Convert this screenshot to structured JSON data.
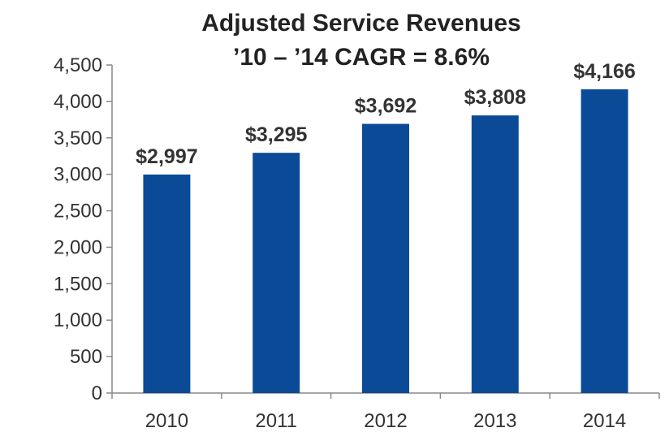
{
  "chart_data": {
    "type": "bar",
    "title": "Adjusted Service Revenues",
    "subtitle": "’10 – ’14 CAGR = 8.6%",
    "categories": [
      "2010",
      "2011",
      "2012",
      "2013",
      "2014"
    ],
    "values": [
      2997,
      3295,
      3692,
      3808,
      4166
    ],
    "data_labels": [
      "$2,997",
      "$3,295",
      "$3,692",
      "$3,808",
      "$4,166"
    ],
    "xlabel": "",
    "ylabel": "",
    "ylim": [
      0,
      4500
    ],
    "y_ticks": [
      0,
      500,
      1000,
      1500,
      2000,
      2500,
      3000,
      3500,
      4000,
      4500
    ],
    "y_tick_labels": [
      "0",
      "500",
      "1,000",
      "1,500",
      "2,000",
      "2,500",
      "3,000",
      "3,500",
      "4,000",
      "4,500"
    ],
    "grid": false,
    "legend": "none",
    "bar_color": "#0b4a96",
    "axis_color": "#888888"
  }
}
